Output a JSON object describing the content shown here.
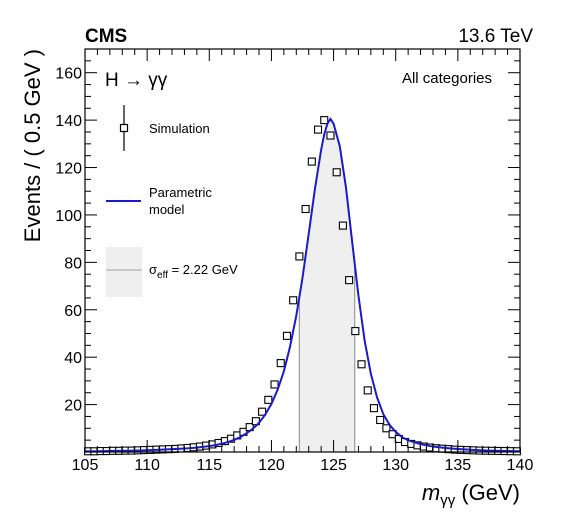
{
  "header": {
    "experiment": "CMS",
    "energy": "13.6 TeV"
  },
  "annotations": {
    "process": "H → γγ",
    "category": "All categories"
  },
  "legend": {
    "simulation": "Simulation",
    "model_line1": "Parametric",
    "model_line2": "model",
    "sigma_eff": "σ",
    "sigma_eff_sub": "eff",
    "sigma_eff_value": " = 2.22 GeV"
  },
  "colors": {
    "model": "#1a1acc",
    "band_fill": "#efefef",
    "band_edge": "#9a9a9a",
    "legend_band": "#bbbbbb",
    "marker": "#000000"
  },
  "chart_data": {
    "type": "scatter",
    "xlabel": "m",
    "xlabel_sub": "γγ",
    "xlabel_unit": " (GeV)",
    "ylabel": "Events / ( 0.5 GeV )",
    "xlim": [
      105,
      140
    ],
    "ylim": [
      0,
      170
    ],
    "xticks": [
      105,
      110,
      115,
      120,
      125,
      130,
      135,
      140
    ],
    "yticks": [
      20,
      40,
      60,
      80,
      100,
      120,
      140,
      160
    ],
    "sigma_eff_band": [
      122.25,
      126.7
    ],
    "series": [
      {
        "name": "Simulation",
        "style": "open-square-markers",
        "bin_width": 0.5,
        "x": [
          105.25,
          105.75,
          106.25,
          106.75,
          107.25,
          107.75,
          108.25,
          108.75,
          109.25,
          109.75,
          110.25,
          110.75,
          111.25,
          111.75,
          112.25,
          112.75,
          113.25,
          113.75,
          114.25,
          114.75,
          115.25,
          115.75,
          116.25,
          116.75,
          117.25,
          117.75,
          118.25,
          118.75,
          119.25,
          119.75,
          120.25,
          120.75,
          121.25,
          121.75,
          122.25,
          122.75,
          123.25,
          123.75,
          124.25,
          124.75,
          125.25,
          125.75,
          126.25,
          126.75,
          127.25,
          127.75,
          128.25,
          128.75,
          129.25,
          129.75,
          130.25,
          130.75,
          131.25,
          131.75,
          132.25,
          132.75,
          133.25,
          133.75,
          134.25,
          134.75,
          135.25,
          135.75,
          136.25,
          136.75,
          137.25,
          137.75,
          138.25,
          138.75,
          139.25,
          139.75
        ],
        "y": [
          0.3,
          0.3,
          0.4,
          0.4,
          0.5,
          0.5,
          0.6,
          0.6,
          0.7,
          0.8,
          0.9,
          1.0,
          1.1,
          1.2,
          1.3,
          1.5,
          1.7,
          2.0,
          2.3,
          2.7,
          3.2,
          3.8,
          4.6,
          5.6,
          7.0,
          8.5,
          10.5,
          13.0,
          17.0,
          22.0,
          28.5,
          37.5,
          49.0,
          64.0,
          82.5,
          102.5,
          122.5,
          136.0,
          140.0,
          133.5,
          118.0,
          95.5,
          72.5,
          51.0,
          37.0,
          26.0,
          18.5,
          13.5,
          10.0,
          7.5,
          5.5,
          4.2,
          3.4,
          2.8,
          2.3,
          1.9,
          1.6,
          1.4,
          1.2,
          1.0,
          0.9,
          0.8,
          0.7,
          0.6,
          0.55,
          0.5,
          0.45,
          0.4,
          0.35,
          0.3
        ]
      },
      {
        "name": "Parametric model",
        "style": "line",
        "x": [
          105.0,
          106.0,
          107.0,
          108.0,
          109.0,
          110.0,
          111.0,
          112.0,
          113.0,
          114.0,
          115.0,
          115.5,
          116.0,
          116.5,
          117.0,
          117.5,
          118.0,
          118.5,
          119.0,
          119.5,
          120.0,
          120.5,
          121.0,
          121.5,
          122.0,
          122.5,
          123.0,
          123.5,
          124.0,
          124.25,
          124.5,
          124.75,
          125.0,
          125.5,
          126.0,
          126.5,
          127.0,
          127.5,
          128.0,
          128.5,
          129.0,
          129.5,
          130.0,
          130.5,
          131.0,
          132.0,
          133.0,
          134.0,
          135.0,
          136.0,
          137.0,
          138.0,
          139.0,
          140.0
        ],
        "y": [
          0.25,
          0.3,
          0.4,
          0.5,
          0.6,
          0.75,
          0.95,
          1.2,
          1.45,
          1.85,
          2.5,
          2.9,
          3.5,
          4.2,
          5.1,
          6.3,
          7.9,
          9.8,
          12.3,
          15.8,
          20.3,
          26.3,
          34.0,
          44.5,
          57.5,
          73.5,
          92.0,
          111.0,
          127.5,
          134.0,
          138.5,
          140.5,
          138.5,
          129.0,
          111.5,
          88.5,
          66.0,
          47.0,
          33.0,
          23.0,
          16.0,
          11.5,
          8.5,
          6.3,
          4.9,
          3.3,
          2.3,
          1.7,
          1.25,
          0.95,
          0.7,
          0.55,
          0.42,
          0.3
        ]
      }
    ]
  }
}
